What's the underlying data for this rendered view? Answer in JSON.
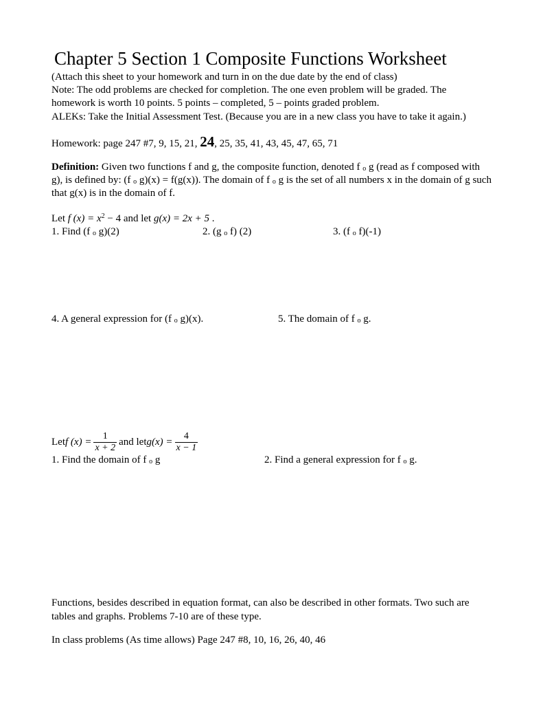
{
  "title": "Chapter 5 Section 1 Composite Functions Worksheet",
  "intro": {
    "line1": "(Attach this sheet to your homework and turn in on the due date by the end of class)",
    "line2": "Note: The odd problems are checked for completion.  The one even problem will be graded.  The homework is worth 10 points.  5 points – completed, 5 – points graded problem.",
    "line3": "ALEKs: Take the Initial Assessment Test. (Because you are in a new class you have to take it again.)"
  },
  "homework": {
    "prefix": "Homework: page 247 #7, 9, 15, 21, ",
    "big": "24",
    "suffix": ", 25, 35, 41, 43, 45, 47, 65, 71"
  },
  "definition": {
    "label": "Definition:",
    "text1": " Given two functions f and g, the composite function, denoted f ",
    "o1": "o",
    "text2": " g (read as f composed with g), is defined by: (f ",
    "o2": "o",
    "text3": " g)(x) = f(g(x)).  The domain of f ",
    "o3": "o",
    "text4": " g is the set of all numbers x in the domain of g such that g(x) is in the domain of f."
  },
  "set1": {
    "let_pre": "Let  ",
    "fx": "f (x) = x",
    "sup": "2",
    "mid": " − 4  and let  ",
    "gx": "g(x) = 2x + 5",
    "end": " .",
    "q1a": "1. Find (f ",
    "q1o": "o",
    "q1b": " g)(2)",
    "q2a": "2. (g ",
    "q2o": "o",
    "q2b": " f) (2)",
    "q3a": "3. (f ",
    "q3o": "o",
    "q3b": " f)(-1)",
    "q4a": "4. A general expression for (f ",
    "q4o": "o",
    "q4b": " g)(x).",
    "q5a": "5. The domain of f ",
    "q5o": "o",
    "q5b": " g."
  },
  "set2": {
    "let_pre": "Let  ",
    "fx_pre": "f (x) =",
    "f_num": "1",
    "f_den": "x + 2",
    "mid": "  and let  ",
    "gx_pre": "g(x) =",
    "g_num": "4",
    "g_den": "x − 1",
    "q1a": "1. Find the domain of f ",
    "q1o": "o",
    "q1b": " g",
    "q2a": "2. Find a general expression for f ",
    "q2o": "o",
    "q2b": " g."
  },
  "footer": {
    "line1": "Functions, besides described in equation format, can also be described in other formats.  Two such are tables and graphs.  Problems 7-10 are of these type.",
    "line2": "In class problems (As time allows) Page 247  #8, 10, 16, 26, 40, 46"
  },
  "colors": {
    "text": "#000000",
    "page_bg": "#ffffff",
    "outer_bg": "#f5f5f5"
  },
  "typography": {
    "title_fontsize": 27,
    "body_fontsize": 15,
    "big_number_fontsize": 21,
    "font_family": "Times New Roman"
  }
}
